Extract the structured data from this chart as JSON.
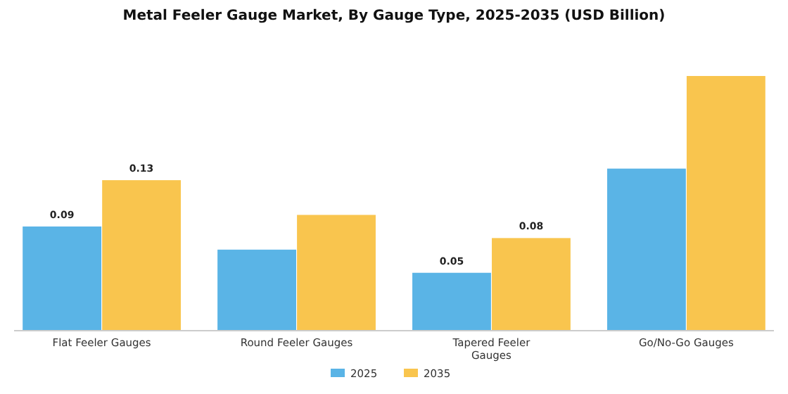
{
  "chart_data": {
    "type": "bar",
    "title": "Metal Feeler Gauge Market, By Gauge Type, 2025-2035 (USD Billion)",
    "categories": [
      "Flat Feeler Gauges",
      "Round Feeler Gauges",
      "Tapered Feeler Gauges",
      "Go/No-Go Gauges"
    ],
    "series": [
      {
        "name": "2025",
        "color": "#5ab4e6",
        "values": [
          0.09,
          0.07,
          0.05,
          0.14
        ],
        "value_labels": [
          "0.09",
          null,
          "0.05",
          null
        ]
      },
      {
        "name": "2035",
        "color": "#f9c54e",
        "values": [
          0.13,
          0.1,
          0.08,
          0.22
        ],
        "value_labels": [
          "0.13",
          null,
          "0.08",
          null
        ]
      }
    ],
    "legend": "bottom",
    "grid": false
  }
}
